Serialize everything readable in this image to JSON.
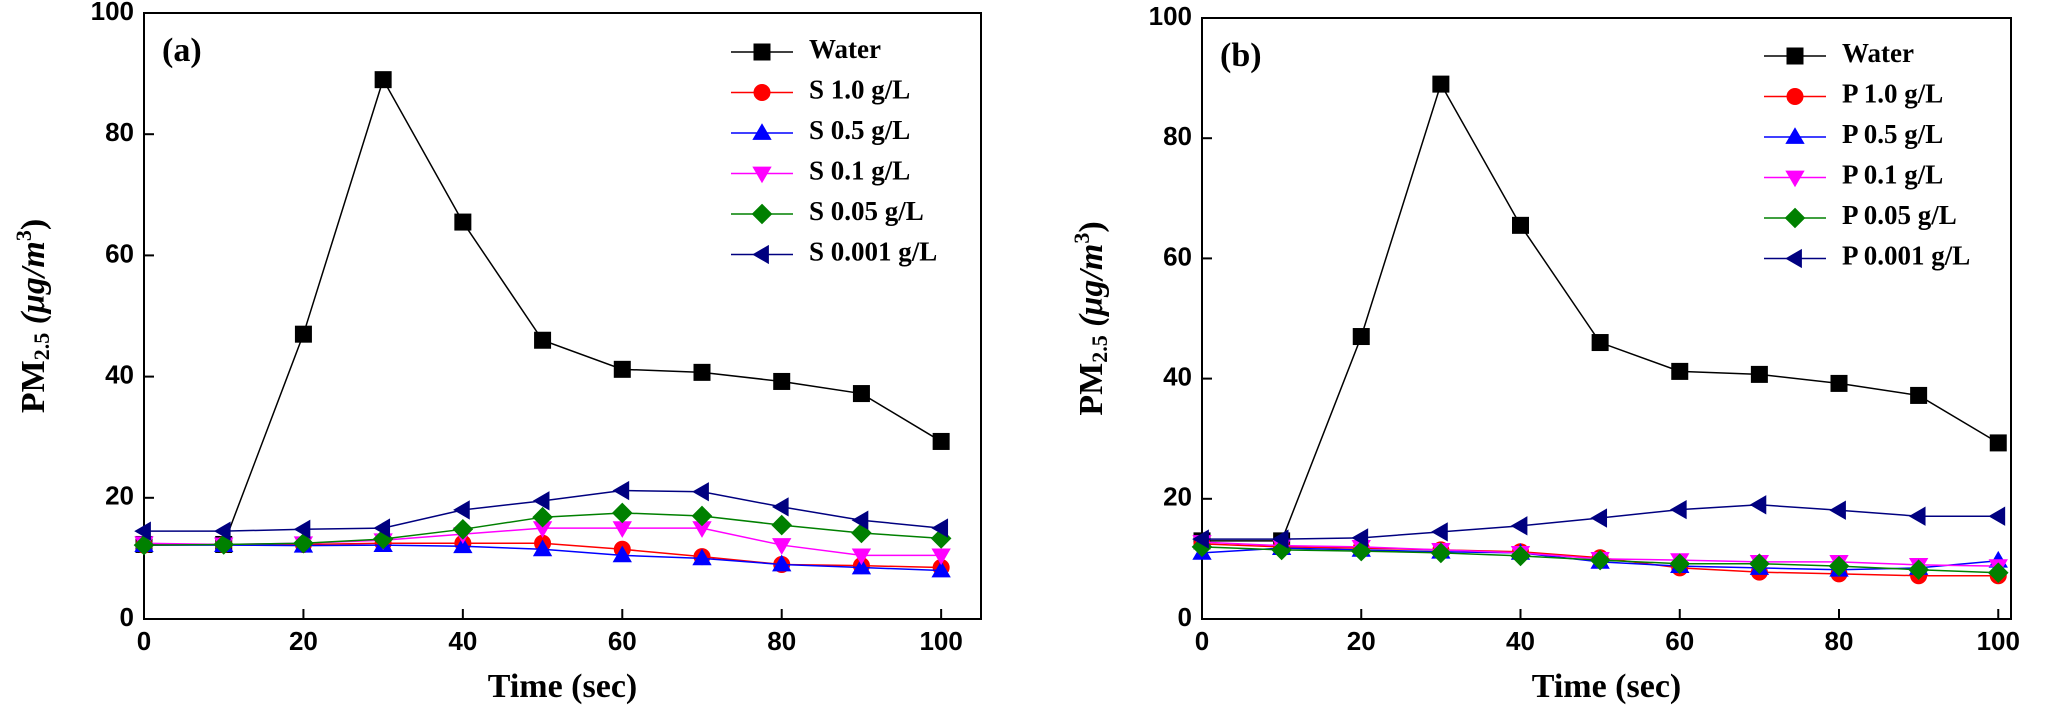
{
  "chart_data": [
    {
      "type": "line",
      "panel_label": "(a)",
      "x_label": "Time (sec)",
      "y_label_parts": [
        "PM",
        "2.5",
        " (μg/m",
        "3",
        ")"
      ],
      "x": [
        0,
        10,
        20,
        30,
        40,
        50,
        60,
        70,
        80,
        90,
        100
      ],
      "xlim": [
        0,
        105
      ],
      "xticks": [
        0,
        20,
        40,
        60,
        80,
        100
      ],
      "ylim": [
        0,
        100
      ],
      "yticks": [
        0,
        20,
        40,
        60,
        80,
        100
      ],
      "legend": "upper right",
      "series": [
        {
          "name": "Water",
          "color": "#000000",
          "marker": "square",
          "values": [
            12.3,
            12.3,
            47,
            89,
            65.5,
            46,
            41.2,
            40.7,
            39.2,
            37.2,
            29.3
          ]
        },
        {
          "name": "S 1.0 g/L",
          "color": "#ff0000",
          "marker": "circle",
          "values": [
            12.2,
            12.3,
            12.3,
            12.5,
            12.5,
            12.5,
            11.5,
            10.3,
            9,
            8.8,
            8.5
          ]
        },
        {
          "name": "S 0.5 g/L",
          "color": "#0000ff",
          "marker": "triangle-up",
          "values": [
            12.2,
            12.2,
            12.1,
            12.2,
            12,
            11.5,
            10.5,
            10,
            9,
            8.5,
            8
          ]
        },
        {
          "name": "S 0.1 g/L",
          "color": "#ff00ff",
          "marker": "triangle-down",
          "values": [
            12.5,
            12.3,
            12.5,
            13,
            14,
            15,
            15,
            15,
            12.2,
            10.5,
            10.5
          ]
        },
        {
          "name": "S 0.05 g/L",
          "color": "#008000",
          "marker": "diamond",
          "values": [
            12.2,
            12.3,
            12.5,
            13.2,
            14.8,
            16.8,
            17.5,
            17,
            15.5,
            14.2,
            13.3
          ]
        },
        {
          "name": "S 0.001 g/L",
          "color": "#000080",
          "marker": "triangle-left",
          "values": [
            14.5,
            14.5,
            14.8,
            15,
            18,
            19.5,
            21.2,
            21,
            18.5,
            16.3,
            15
          ]
        }
      ]
    },
    {
      "type": "line",
      "panel_label": "(b)",
      "x_label": "Time (sec)",
      "y_label_parts": [
        "PM",
        "2.5",
        " (μg/m",
        "3",
        ")"
      ],
      "x": [
        0,
        10,
        20,
        30,
        40,
        50,
        60,
        70,
        80,
        90,
        100
      ],
      "xlim": [
        0,
        101.6
      ],
      "xticks": [
        0,
        20,
        40,
        60,
        80,
        100
      ],
      "ylim": [
        0,
        100
      ],
      "yticks": [
        0,
        20,
        40,
        60,
        80,
        100
      ],
      "legend": "upper right",
      "series": [
        {
          "name": "Water",
          "color": "#000000",
          "marker": "square",
          "values": [
            13,
            13,
            47,
            89,
            65.5,
            46,
            41.2,
            40.7,
            39.2,
            37.2,
            29.3
          ]
        },
        {
          "name": "P 1.0 g/L",
          "color": "#ff0000",
          "marker": "circle",
          "values": [
            12.5,
            12,
            11.8,
            11.5,
            11.2,
            10.2,
            8.5,
            7.8,
            7.5,
            7.2,
            7.2
          ]
        },
        {
          "name": "P 0.5 g/L",
          "color": "#0000ff",
          "marker": "triangle-up",
          "values": [
            11,
            11.8,
            11.5,
            11.2,
            11,
            9.5,
            8.8,
            8.5,
            8.2,
            8.5,
            9.7
          ]
        },
        {
          "name": "P 0.1 g/L",
          "color": "#ff00ff",
          "marker": "triangle-down",
          "values": [
            12.8,
            12.2,
            12,
            11.5,
            11,
            10,
            9.8,
            9.5,
            9.5,
            9,
            8.8
          ]
        },
        {
          "name": "P 0.05 g/L",
          "color": "#008000",
          "marker": "diamond",
          "values": [
            12,
            11.5,
            11.3,
            11,
            10.5,
            9.8,
            9.2,
            9.2,
            8.8,
            8.2,
            7.7
          ]
        },
        {
          "name": "P 0.001 g/L",
          "color": "#000080",
          "marker": "triangle-left",
          "values": [
            13.3,
            13.3,
            13.5,
            14.5,
            15.5,
            16.8,
            18.2,
            19,
            18.1,
            17.1,
            17.1
          ]
        }
      ]
    }
  ]
}
